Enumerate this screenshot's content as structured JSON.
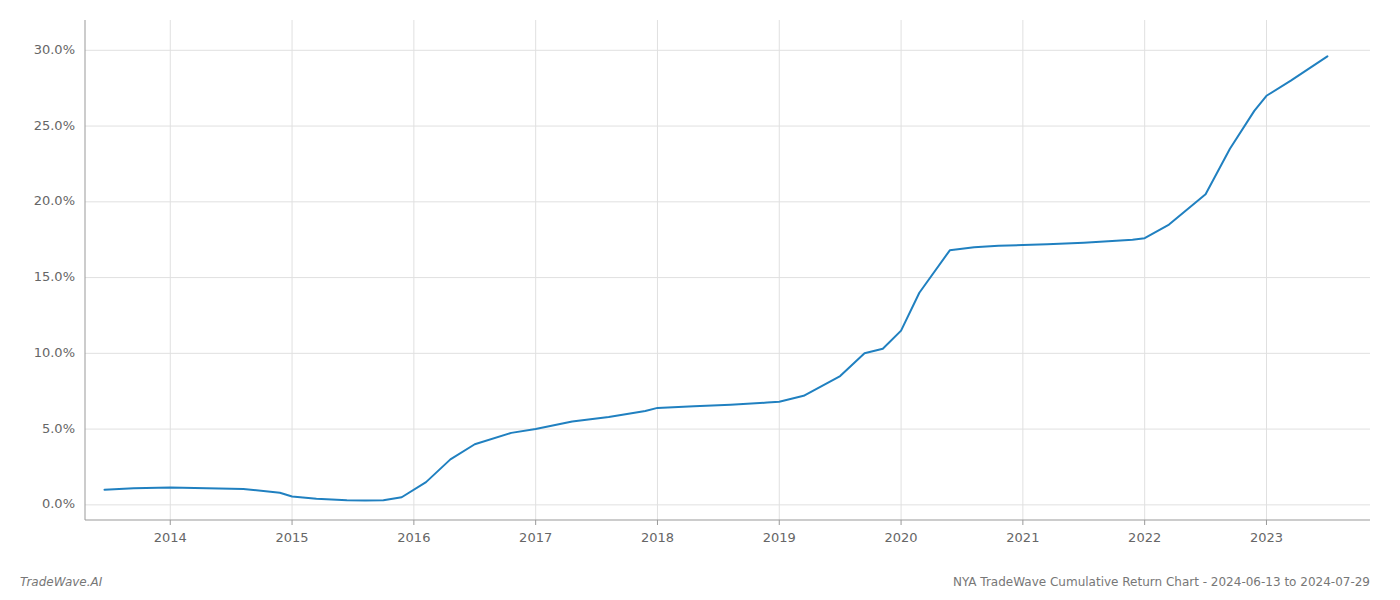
{
  "chart_data": {
    "type": "line",
    "x": [
      2013.46,
      2013.7,
      2014.0,
      2014.3,
      2014.6,
      2014.9,
      2015.0,
      2015.2,
      2015.45,
      2015.6,
      2015.75,
      2015.9,
      2016.1,
      2016.3,
      2016.5,
      2016.8,
      2017.0,
      2017.3,
      2017.6,
      2017.9,
      2018.0,
      2018.3,
      2018.6,
      2018.9,
      2019.0,
      2019.2,
      2019.5,
      2019.7,
      2019.85,
      2020.0,
      2020.15,
      2020.4,
      2020.6,
      2020.8,
      2021.0,
      2021.2,
      2021.5,
      2021.7,
      2021.9,
      2022.0,
      2022.2,
      2022.5,
      2022.7,
      2022.9,
      2023.0,
      2023.2,
      2023.5
    ],
    "values": [
      1.0,
      1.1,
      1.15,
      1.1,
      1.05,
      0.8,
      0.55,
      0.4,
      0.3,
      0.28,
      0.3,
      0.5,
      1.5,
      3.0,
      4.0,
      4.75,
      5.0,
      5.5,
      5.8,
      6.2,
      6.4,
      6.5,
      6.6,
      6.75,
      6.8,
      7.2,
      8.5,
      10.0,
      10.3,
      11.5,
      14.0,
      16.8,
      17.0,
      17.1,
      17.15,
      17.2,
      17.3,
      17.4,
      17.5,
      17.6,
      18.5,
      20.5,
      23.5,
      26.0,
      27.0,
      28.0,
      29.6
    ],
    "color": "#2080c0",
    "xlim": [
      2013.3,
      2023.85
    ],
    "ylim": [
      -1.0,
      32.0
    ],
    "xticks": [
      2014,
      2015,
      2016,
      2017,
      2018,
      2019,
      2020,
      2021,
      2022,
      2023
    ],
    "yticks": [
      {
        "value": 0.0,
        "label": "0.0%"
      },
      {
        "value": 5.0,
        "label": "5.0%"
      },
      {
        "value": 10.0,
        "label": "10.0%"
      },
      {
        "value": 15.0,
        "label": "15.0%"
      },
      {
        "value": 20.0,
        "label": "20.0%"
      },
      {
        "value": 25.0,
        "label": "25.0%"
      },
      {
        "value": 30.0,
        "label": "30.0%"
      }
    ],
    "grid": true,
    "annotations": [
      "TradeWave.AI",
      "NYA TradeWave Cumulative Return Chart - 2024-06-13 to 2024-07-29"
    ]
  }
}
